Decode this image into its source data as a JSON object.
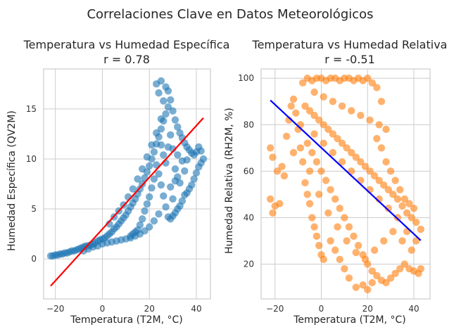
{
  "figure": {
    "suptitle": "Correlaciones Clave en Datos Meteorológicos"
  },
  "chart_data": [
    {
      "type": "scatter",
      "title": "Temperatura vs Humedad Específica",
      "subtitle": "r = 0.78",
      "xlabel": "Temperatura (T2M, °C)",
      "ylabel": "Humedad Específica (QV2M)",
      "xlim": [
        -25,
        46
      ],
      "ylim": [
        -4,
        19
      ],
      "xticks": [
        -20,
        0,
        20,
        40
      ],
      "yticks": [
        0,
        5,
        10,
        15
      ],
      "grid": true,
      "point_color": "#1f77b4",
      "regression_color": "#ff0000",
      "regression_line": [
        [
          -22,
          -2.7
        ],
        [
          43,
          14.1
        ]
      ],
      "points": [
        [
          -22,
          0.3
        ],
        [
          -21,
          0.3
        ],
        [
          -20,
          0.4
        ],
        [
          -19,
          0.4
        ],
        [
          -18,
          0.5
        ],
        [
          -17,
          0.5
        ],
        [
          -16,
          0.6
        ],
        [
          -15,
          0.6
        ],
        [
          -14,
          0.7
        ],
        [
          -13,
          0.8
        ],
        [
          -12,
          0.8
        ],
        [
          -11,
          0.9
        ],
        [
          -10,
          1.0
        ],
        [
          -9,
          1.1
        ],
        [
          -8,
          1.2
        ],
        [
          -7,
          1.3
        ],
        [
          -6,
          1.3
        ],
        [
          -5,
          1.4
        ],
        [
          -4,
          1.5
        ],
        [
          -3,
          1.6
        ],
        [
          -2,
          1.8
        ],
        [
          -1,
          1.9
        ],
        [
          0,
          2.0
        ],
        [
          1,
          2.1
        ],
        [
          2,
          2.3
        ],
        [
          3,
          2.5
        ],
        [
          4,
          2.7
        ],
        [
          5,
          3.0
        ],
        [
          6,
          3.2
        ],
        [
          7,
          3.5
        ],
        [
          8,
          3.8
        ],
        [
          9,
          4.1
        ],
        [
          10,
          4.4
        ],
        [
          11,
          4.8
        ],
        [
          12,
          5.2
        ],
        [
          13,
          5.6
        ],
        [
          14,
          6.0
        ],
        [
          15,
          6.5
        ],
        [
          16,
          7.0
        ],
        [
          17,
          7.5
        ],
        [
          18,
          8.1
        ],
        [
          19,
          8.7
        ],
        [
          20,
          9.3
        ],
        [
          21,
          10.0
        ],
        [
          22,
          10.7
        ],
        [
          23,
          11.5
        ],
        [
          24,
          12.2
        ],
        [
          25,
          13.0
        ],
        [
          26,
          13.8
        ],
        [
          27,
          14.5
        ],
        [
          28,
          15.2
        ],
        [
          -8,
          0.8
        ],
        [
          -6,
          1.0
        ],
        [
          -4,
          1.2
        ],
        [
          -2,
          1.3
        ],
        [
          0,
          1.5
        ],
        [
          2,
          1.6
        ],
        [
          4,
          1.7
        ],
        [
          6,
          1.8
        ],
        [
          8,
          1.9
        ],
        [
          10,
          2.0
        ],
        [
          12,
          2.1
        ],
        [
          14,
          2.3
        ],
        [
          16,
          2.5
        ],
        [
          18,
          2.8
        ],
        [
          20,
          3.2
        ],
        [
          22,
          3.8
        ],
        [
          24,
          4.5
        ],
        [
          3,
          3.5
        ],
        [
          5,
          4.2
        ],
        [
          7,
          4.8
        ],
        [
          9,
          5.4
        ],
        [
          11,
          6.2
        ],
        [
          13,
          7.0
        ],
        [
          15,
          8.0
        ],
        [
          17,
          9.0
        ],
        [
          19,
          10.2
        ],
        [
          21,
          11.4
        ],
        [
          23,
          12.6
        ],
        [
          25,
          14.0
        ],
        [
          26,
          15.8
        ],
        [
          24,
          16.6
        ],
        [
          23,
          17.5
        ],
        [
          25,
          17.8
        ],
        [
          27,
          17.2
        ],
        [
          28,
          16.8
        ],
        [
          29,
          15.9
        ],
        [
          30,
          14.8
        ],
        [
          31,
          13.9
        ],
        [
          32,
          13.2
        ],
        [
          33,
          12.6
        ],
        [
          34,
          12.1
        ],
        [
          35,
          11.6
        ],
        [
          36,
          11.2
        ],
        [
          37,
          10.9
        ],
        [
          38,
          10.6
        ],
        [
          39,
          10.4
        ],
        [
          40,
          10.7
        ],
        [
          41,
          11.2
        ],
        [
          42,
          10.8
        ],
        [
          43,
          10.0
        ],
        [
          42,
          9.6
        ],
        [
          41,
          9.2
        ],
        [
          40,
          8.6
        ],
        [
          39,
          8.0
        ],
        [
          38,
          7.4
        ],
        [
          37,
          7.0
        ],
        [
          36,
          6.6
        ],
        [
          35,
          6.4
        ],
        [
          34,
          5.8
        ],
        [
          33,
          5.3
        ],
        [
          32,
          5.0
        ],
        [
          31,
          4.6
        ],
        [
          30,
          4.3
        ],
        [
          29,
          4.0
        ],
        [
          28,
          4.2
        ],
        [
          27,
          5.2
        ],
        [
          26,
          6.3
        ],
        [
          25,
          7.4
        ],
        [
          24,
          8.5
        ],
        [
          23,
          9.4
        ],
        [
          22,
          8.0
        ],
        [
          21,
          7.1
        ],
        [
          20,
          6.2
        ],
        [
          19,
          5.5
        ],
        [
          18,
          4.8
        ],
        [
          17,
          4.0
        ],
        [
          16,
          3.4
        ],
        [
          15,
          2.9
        ],
        [
          14,
          2.7
        ],
        [
          13,
          2.5
        ],
        [
          12,
          2.3
        ],
        [
          30,
          11.0
        ],
        [
          31,
          9.0
        ],
        [
          32,
          8.2
        ],
        [
          33,
          7.6
        ],
        [
          34,
          9.8
        ],
        [
          35,
          8.8
        ],
        [
          36,
          9.9
        ],
        [
          29,
          12.4
        ],
        [
          28,
          11.2
        ],
        [
          27,
          9.6
        ],
        [
          26,
          10.4
        ],
        [
          25,
          11.4
        ],
        [
          29,
          7.2
        ],
        [
          30,
          6.0
        ],
        [
          31,
          7.8
        ],
        [
          32,
          10.4
        ]
      ]
    },
    {
      "type": "scatter",
      "title": "Temperatura vs Humedad Relativa",
      "subtitle": "r = -0.51",
      "xlabel": "Temperatura (T2M, °C)",
      "ylabel": "Humedad Relativa (RH2M, %)",
      "xlim": [
        -26,
        47
      ],
      "ylim": [
        5,
        104
      ],
      "xticks": [
        -20,
        0,
        20,
        40
      ],
      "yticks": [
        20,
        40,
        60,
        80,
        100
      ],
      "grid": true,
      "point_color": "#ff7f0e",
      "regression_color": "#0000ff",
      "regression_line": [
        [
          -22,
          90.5
        ],
        [
          43,
          30.2
        ]
      ],
      "points": [
        [
          -22,
          48
        ],
        [
          -21,
          42
        ],
        [
          -20,
          45
        ],
        [
          -22,
          70
        ],
        [
          -21,
          66
        ],
        [
          -19,
          60
        ],
        [
          -17,
          62
        ],
        [
          -16,
          58
        ],
        [
          -15,
          75
        ],
        [
          -14,
          82
        ],
        [
          -13,
          88
        ],
        [
          -12,
          91
        ],
        [
          -11,
          85
        ],
        [
          -10,
          78
        ],
        [
          -9,
          70
        ],
        [
          -8,
          64
        ],
        [
          -7,
          55
        ],
        [
          -6,
          50
        ],
        [
          -5,
          46
        ],
        [
          -4,
          40
        ],
        [
          -3,
          36
        ],
        [
          -2,
          32
        ],
        [
          -1,
          28
        ],
        [
          0,
          24
        ],
        [
          1,
          22
        ],
        [
          -8,
          98
        ],
        [
          -6,
          100
        ],
        [
          -4,
          99
        ],
        [
          -2,
          100
        ],
        [
          0,
          100
        ],
        [
          2,
          99
        ],
        [
          4,
          100
        ],
        [
          6,
          100
        ],
        [
          8,
          99
        ],
        [
          10,
          100
        ],
        [
          12,
          100
        ],
        [
          14,
          99
        ],
        [
          16,
          100
        ],
        [
          18,
          99
        ],
        [
          20,
          100
        ],
        [
          22,
          98
        ],
        [
          24,
          96
        ],
        [
          26,
          90
        ],
        [
          -7,
          88
        ],
        [
          -5,
          86
        ],
        [
          -3,
          84
        ],
        [
          -1,
          82
        ],
        [
          1,
          80
        ],
        [
          3,
          78
        ],
        [
          5,
          76
        ],
        [
          7,
          74
        ],
        [
          9,
          72
        ],
        [
          11,
          70
        ],
        [
          13,
          68
        ],
        [
          15,
          66
        ],
        [
          17,
          64
        ],
        [
          19,
          62
        ],
        [
          21,
          60
        ],
        [
          23,
          58
        ],
        [
          25,
          56
        ],
        [
          27,
          54
        ],
        [
          29,
          52
        ],
        [
          31,
          50
        ],
        [
          33,
          48
        ],
        [
          35,
          45
        ],
        [
          37,
          42
        ],
        [
          39,
          40
        ],
        [
          41,
          38
        ],
        [
          43,
          35
        ],
        [
          -6,
          72
        ],
        [
          -4,
          68
        ],
        [
          -2,
          64
        ],
        [
          0,
          60
        ],
        [
          2,
          56
        ],
        [
          4,
          52
        ],
        [
          6,
          48
        ],
        [
          8,
          44
        ],
        [
          10,
          40
        ],
        [
          12,
          36
        ],
        [
          14,
          32
        ],
        [
          16,
          28
        ],
        [
          18,
          24
        ],
        [
          20,
          20
        ],
        [
          22,
          17
        ],
        [
          24,
          15
        ],
        [
          26,
          13
        ],
        [
          28,
          12
        ],
        [
          30,
          14
        ],
        [
          32,
          16
        ],
        [
          34,
          18
        ],
        [
          36,
          20
        ],
        [
          38,
          18
        ],
        [
          40,
          17
        ],
        [
          42,
          16
        ],
        [
          43,
          18
        ],
        [
          -3,
          94
        ],
        [
          1,
          92
        ],
        [
          5,
          90
        ],
        [
          9,
          88
        ],
        [
          13,
          86
        ],
        [
          17,
          84
        ],
        [
          21,
          82
        ],
        [
          25,
          80
        ],
        [
          28,
          78
        ],
        [
          -5,
          60
        ],
        [
          -1,
          50
        ],
        [
          3,
          42
        ],
        [
          7,
          36
        ],
        [
          11,
          30
        ],
        [
          15,
          25
        ],
        [
          19,
          22
        ],
        [
          23,
          26
        ],
        [
          27,
          30
        ],
        [
          31,
          34
        ],
        [
          35,
          30
        ],
        [
          39,
          26
        ],
        [
          41,
          30
        ],
        [
          37,
          34
        ],
        [
          33,
          40
        ],
        [
          29,
          44
        ],
        [
          25,
          48
        ],
        [
          21,
          52
        ],
        [
          17,
          56
        ],
        [
          13,
          60
        ],
        [
          9,
          64
        ],
        [
          5,
          68
        ],
        [
          1,
          72
        ],
        [
          -3,
          76
        ],
        [
          -9,
          80
        ],
        [
          -12,
          68
        ],
        [
          -18,
          46
        ],
        [
          15,
          10
        ],
        [
          18,
          11
        ],
        [
          20,
          9
        ],
        [
          22,
          12
        ],
        [
          12,
          14
        ],
        [
          10,
          18
        ],
        [
          8,
          22
        ],
        [
          6,
          26
        ],
        [
          4,
          30
        ],
        [
          28,
          64
        ],
        [
          30,
          60
        ],
        [
          32,
          56
        ],
        [
          34,
          52
        ],
        [
          36,
          48
        ],
        [
          38,
          46
        ],
        [
          40,
          44
        ],
        [
          26,
          70
        ],
        [
          24,
          74
        ]
      ]
    }
  ]
}
